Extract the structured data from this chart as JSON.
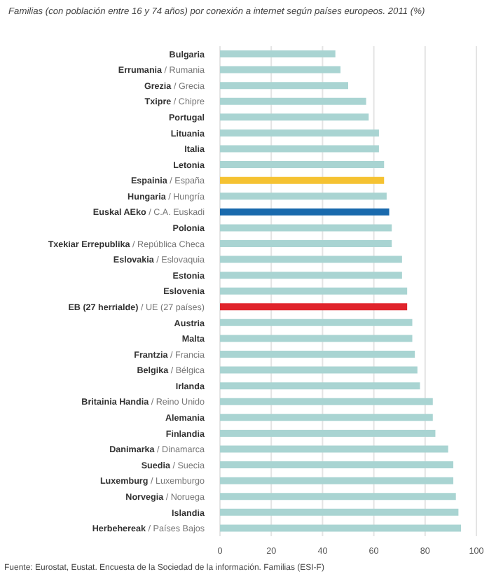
{
  "chart_data": {
    "type": "bar",
    "orientation": "horizontal",
    "title": "Familias (con población entre 16 y 74 años) por conexión a internet según países europeos. 2011 (%)",
    "categories": [
      "Bulgaria",
      "Errumania / Rumania",
      "Grezia / Grecia",
      "Txipre / Chipre",
      "Portugal",
      "Lituania",
      "Italia",
      "Letonia",
      "Espainia / España",
      "Hungaria / Hungría",
      "Euskal AEko / C.A. Euskadi",
      "Polonia",
      "Txekiar Errepublika / República Checa",
      "Eslovakia / Eslovaquia",
      "Estonia",
      "Eslovenia",
      "EB (27 herrialde) / UE (27 países)",
      "Austria",
      "Malta",
      "Frantzia / Francia",
      "Belgika / Bélgica",
      "Irlanda",
      "Britainia Handia / Reino Unido",
      "Alemania",
      "Finlandia",
      "Danimarka / Dinamarca",
      "Suedia / Suecia",
      "Luxemburg / Luxemburgo",
      "Norvegia / Noruega",
      "Islandia",
      "Herbehereak / Países Bajos"
    ],
    "values": [
      45,
      47,
      50,
      57,
      58,
      62,
      62,
      64,
      64,
      65,
      66,
      67,
      67,
      71,
      71,
      73,
      73,
      75,
      75,
      76,
      77,
      78,
      83,
      83,
      84,
      89,
      91,
      91,
      92,
      93,
      94
    ],
    "colors": [
      "#a9d4d2",
      "#a9d4d2",
      "#a9d4d2",
      "#a9d4d2",
      "#a9d4d2",
      "#a9d4d2",
      "#a9d4d2",
      "#a9d4d2",
      "#f5c232",
      "#a9d4d2",
      "#1a6aad",
      "#a9d4d2",
      "#a9d4d2",
      "#a9d4d2",
      "#a9d4d2",
      "#a9d4d2",
      "#e0242c",
      "#a9d4d2",
      "#a9d4d2",
      "#a9d4d2",
      "#a9d4d2",
      "#a9d4d2",
      "#a9d4d2",
      "#a9d4d2",
      "#a9d4d2",
      "#a9d4d2",
      "#a9d4d2",
      "#a9d4d2",
      "#a9d4d2",
      "#a9d4d2",
      "#a9d4d2"
    ],
    "xlim": [
      0,
      100
    ],
    "xticks": [
      0,
      20,
      40,
      60,
      80,
      100
    ],
    "grid": "x",
    "annotations": [
      "Fuente: Eurostat, Eustat. Encuesta de la Sociedad de la información. Familias (ESI-F)"
    ]
  }
}
